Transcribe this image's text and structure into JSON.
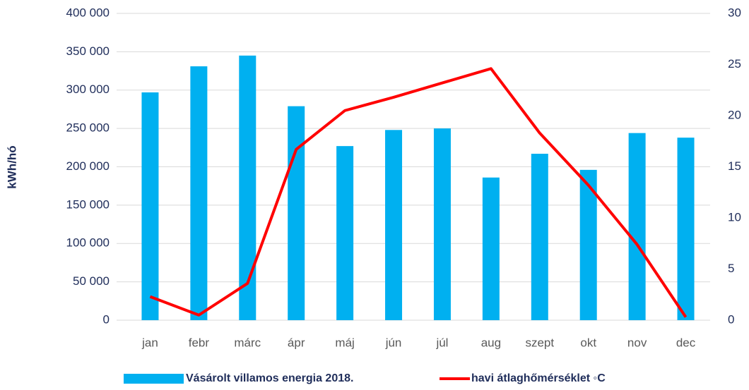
{
  "chart_data": {
    "type": "bar",
    "y_label": "kWh/hó",
    "categories": [
      "jan",
      "febr",
      "márc",
      "ápr",
      "máj",
      "jún",
      "júl",
      "aug",
      "szept",
      "okt",
      "nov",
      "dec"
    ],
    "series": [
      {
        "name": "Vásárolt villamos energia 2018.",
        "type": "bar",
        "color": "#00b0f0",
        "values": [
          297000,
          331000,
          345000,
          279000,
          227000,
          248000,
          250000,
          186000,
          217000,
          196000,
          244000,
          238000
        ]
      },
      {
        "name": "havi átlaghőmérséklet ◦C",
        "type": "line",
        "axis": "y2",
        "color": "#ff0000",
        "values": [
          2.3,
          0.5,
          3.6,
          16.7,
          20.5,
          21.8,
          23.2,
          24.6,
          18.3,
          13.2,
          7.4,
          0.3
        ]
      }
    ],
    "ylim": [
      0,
      400000
    ],
    "yticks": [
      0,
      {
        "value": 50000,
        "label": "50 000"
      },
      {
        "value": 100000,
        "label": "100 000"
      },
      {
        "value": 150000,
        "label": "150 000"
      },
      {
        "value": 200000,
        "label": "200 000"
      },
      {
        "value": 250000,
        "label": "250 000"
      },
      {
        "value": 300000,
        "label": "300 000"
      },
      {
        "value": 350000,
        "label": "350 000"
      },
      {
        "value": 400000,
        "label": "400 000"
      }
    ],
    "y2lim": [
      0,
      30
    ],
    "y2ticks": [
      0,
      5,
      10,
      15,
      20,
      25,
      30
    ],
    "grid": true,
    "legend": "bottom"
  }
}
